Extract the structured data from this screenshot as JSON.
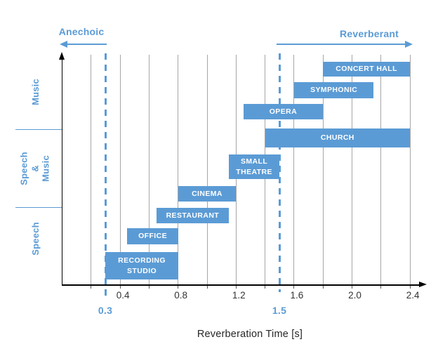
{
  "chart_data": {
    "type": "bar",
    "orientation": "horizontal-range",
    "title": "",
    "xlabel": "Reverberation Time [s]",
    "xlim": [
      0,
      2.5
    ],
    "x_tick_labels": [
      "0.4",
      "0.8",
      "1.2",
      "1.6",
      "2.0",
      "2.4"
    ],
    "grid_step": 0.2,
    "grid_range": [
      0.2,
      2.4
    ],
    "grid_on": true,
    "categories": [
      "Music",
      "Speech & Music",
      "Speech"
    ],
    "category_display": [
      "Music",
      "Speech\n&\nMusic",
      "Speech"
    ],
    "bars": [
      {
        "label": "CONCERT HALL",
        "category": "Music",
        "start": 1.8,
        "end": 2.4
      },
      {
        "label": "SYMPHONIC",
        "category": "Music",
        "start": 1.6,
        "end": 2.15
      },
      {
        "label": "OPERA",
        "category": "Music",
        "start": 1.25,
        "end": 1.8
      },
      {
        "label": "CHURCH",
        "category": "Speech & Music",
        "start": 1.4,
        "end": 2.4
      },
      {
        "label": "SMALL THEATRE",
        "category": "Speech & Music",
        "start": 1.15,
        "end": 1.5
      },
      {
        "label": "CINEMA",
        "category": "Speech & Music",
        "start": 0.8,
        "end": 1.2
      },
      {
        "label": "RESTAURANT",
        "category": "Speech",
        "start": 0.65,
        "end": 1.15
      },
      {
        "label": "OFFICE",
        "category": "Speech",
        "start": 0.45,
        "end": 0.8
      },
      {
        "label": "RECORDING STUDIO",
        "category": "Speech",
        "start": 0.3,
        "end": 0.8
      }
    ],
    "reference_lines": [
      {
        "value": 0.3,
        "label": "0.3"
      },
      {
        "value": 1.5,
        "label": "1.5"
      }
    ],
    "annotations": {
      "anechoic": {
        "label": "Anechoic",
        "direction": "left"
      },
      "reverberant": {
        "label": "Reverberant",
        "direction": "right"
      }
    },
    "legend": "none",
    "colors": {
      "bar": "#5B9BD5",
      "bar_text": "#FFFFFF",
      "accent_blue": "#5B9BD5",
      "gridline": "#A6A6A6",
      "tick": "#595959",
      "axis": "#000000",
      "tick_text": "#333333"
    }
  }
}
